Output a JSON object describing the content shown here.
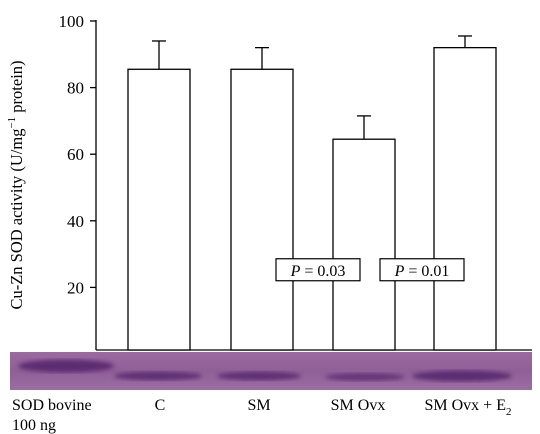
{
  "chart_data": {
    "type": "bar",
    "title": "",
    "ylabel": "Cu-Zn SOD activity (U/mg",
    "ylabel_sup": "−1",
    "ylabel_tail": " protein)",
    "ylim": [
      0,
      100
    ],
    "yticks": [
      20,
      40,
      60,
      80,
      100
    ],
    "categories": [
      "C",
      "SM",
      "SM Ovx",
      "SM Ovx + E2"
    ],
    "values": [
      85.5,
      85.5,
      64.5,
      92
    ],
    "errors": [
      8.5,
      6.5,
      7,
      3.5
    ],
    "bar_color": "#ffffff",
    "annotations": [
      {
        "prefix": "P",
        "text": " = 0.03",
        "category": "SM Ovx",
        "y": 25
      },
      {
        "prefix": "P",
        "text": " = 0.01",
        "category": "SM Ovx + E2",
        "y": 25
      }
    ],
    "gel_lanes": [
      {
        "label": "SOD bovine",
        "label2": "100 ng"
      },
      {
        "label": "C"
      },
      {
        "label": "SM"
      },
      {
        "label": "SM Ovx"
      },
      {
        "label": "SM Ovx + E",
        "sub": "2"
      }
    ],
    "gel_color": "#8a5c91",
    "band_color": "#5a2c70"
  }
}
